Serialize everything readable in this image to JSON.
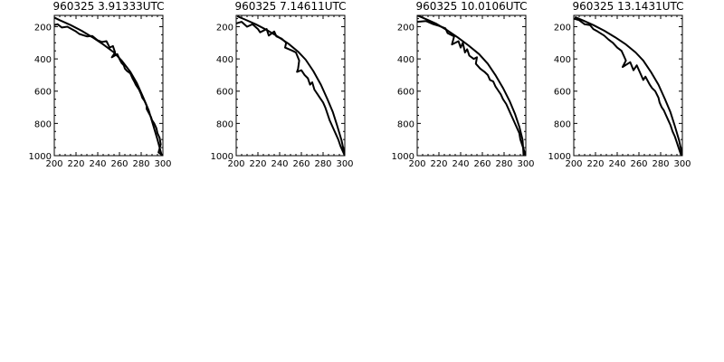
{
  "chart_data": [
    {
      "type": "line",
      "title": "960325   3.91333UTC",
      "xlim": [
        200,
        300
      ],
      "ylim": [
        1000,
        130
      ],
      "xticks": [
        "200",
        "220",
        "240",
        "260",
        "280",
        "300"
      ],
      "yticks": [
        "200",
        "400",
        "600",
        "800",
        "1000"
      ],
      "grid": false,
      "series": [
        {
          "x": [
            199,
            205,
            215,
            225,
            235,
            245,
            255,
            262,
            270,
            276,
            282,
            287,
            291,
            295,
            299
          ],
          "y": [
            140,
            160,
            190,
            225,
            265,
            310,
            360,
            410,
            480,
            550,
            640,
            720,
            810,
            900,
            1000
          ]
        },
        {
          "x": [
            200,
            203,
            207,
            212,
            220,
            223,
            230,
            235,
            240,
            244,
            248,
            251,
            254,
            256,
            253,
            258,
            260,
            262,
            264,
            265,
            267,
            270,
            272,
            274,
            275,
            278,
            280,
            281,
            283,
            285,
            285,
            287,
            289,
            290,
            292,
            294,
            295,
            297,
            298,
            296,
            300
          ],
          "y": [
            190,
            185,
            205,
            200,
            230,
            245,
            260,
            258,
            285,
            295,
            290,
            330,
            320,
            360,
            390,
            370,
            400,
            425,
            440,
            460,
            475,
            490,
            520,
            545,
            560,
            590,
            620,
            640,
            660,
            690,
            710,
            735,
            760,
            780,
            800,
            830,
            860,
            890,
            930,
            980,
            1000
          ]
        }
      ]
    },
    {
      "type": "line",
      "title": "960325   7.14611UTC",
      "xlim": [
        200,
        300
      ],
      "ylim": [
        1000,
        130
      ],
      "xticks": [
        "200",
        "220",
        "240",
        "260",
        "280",
        "300"
      ],
      "yticks": [
        "200",
        "400",
        "600",
        "800",
        "1000"
      ],
      "grid": false,
      "series": [
        {
          "x": [
            201,
            208,
            218,
            228,
            238,
            248,
            257,
            264,
            271,
            278,
            284,
            289,
            293,
            297,
            300
          ],
          "y": [
            135,
            155,
            185,
            220,
            260,
            305,
            355,
            405,
            475,
            560,
            650,
            730,
            815,
            905,
            1000
          ]
        },
        {
          "x": [
            200,
            205,
            210,
            215,
            220,
            222,
            228,
            230,
            235,
            237,
            242,
            246,
            245,
            252,
            255,
            258,
            257,
            256,
            260,
            263,
            266,
            268,
            270,
            272,
            275,
            277,
            280,
            282,
            283,
            285,
            286,
            288,
            290,
            292,
            294,
            296,
            298,
            300
          ],
          "y": [
            180,
            170,
            200,
            185,
            215,
            235,
            215,
            255,
            230,
            260,
            275,
            300,
            330,
            350,
            360,
            410,
            460,
            480,
            470,
            500,
            520,
            560,
            545,
            590,
            620,
            640,
            670,
            700,
            720,
            760,
            780,
            810,
            840,
            870,
            900,
            940,
            970,
            1000
          ]
        }
      ]
    },
    {
      "type": "line",
      "title": "960325   10.0106UTC",
      "xlim": [
        200,
        300
      ],
      "ylim": [
        1000,
        130
      ],
      "xticks": [
        "200",
        "220",
        "240",
        "260",
        "280",
        "300"
      ],
      "yticks": [
        "200",
        "400",
        "600",
        "800",
        "1000"
      ],
      "grid": false,
      "series": [
        {
          "x": [
            200,
            207,
            217,
            227,
            237,
            247,
            257,
            265,
            272,
            279,
            285,
            290,
            294,
            297,
            298
          ],
          "y": [
            130,
            150,
            180,
            220,
            265,
            315,
            370,
            430,
            500,
            580,
            660,
            740,
            820,
            900,
            1000
          ]
        },
        {
          "x": [
            200,
            208,
            215,
            220,
            226,
            228,
            234,
            232,
            238,
            240,
            242,
            244,
            246,
            248,
            252,
            255,
            254,
            258,
            262,
            265,
            267,
            270,
            272,
            274,
            277,
            279,
            282,
            284,
            286,
            288,
            290,
            292,
            294,
            295,
            298,
            300
          ],
          "y": [
            170,
            165,
            185,
            195,
            210,
            240,
            260,
            310,
            290,
            330,
            300,
            360,
            340,
            380,
            400,
            390,
            430,
            460,
            480,
            500,
            530,
            540,
            570,
            590,
            620,
            650,
            680,
            710,
            740,
            770,
            800,
            830,
            860,
            900,
            960,
            1000
          ]
        }
      ]
    },
    {
      "type": "line",
      "title": "960325   13.1431UTC",
      "xlim": [
        200,
        300
      ],
      "ylim": [
        1000,
        130
      ],
      "xticks": [
        "200",
        "220",
        "240",
        "260",
        "280",
        "300"
      ],
      "yticks": [
        "200",
        "400",
        "600",
        "800",
        "1000"
      ],
      "grid": false,
      "series": [
        {
          "x": [
            201,
            208,
            218,
            228,
            238,
            248,
            257,
            264,
            271,
            278,
            284,
            289,
            293,
            297,
            300
          ],
          "y": [
            140,
            160,
            190,
            225,
            265,
            310,
            360,
            410,
            480,
            560,
            650,
            730,
            815,
            905,
            1000
          ]
        },
        {
          "x": [
            200,
            205,
            210,
            215,
            218,
            222,
            228,
            232,
            236,
            240,
            244,
            246,
            248,
            245,
            252,
            255,
            258,
            262,
            264,
            266,
            270,
            272,
            275,
            278,
            279,
            281,
            283,
            285,
            287,
            289,
            291,
            293,
            295,
            297,
            299
          ],
          "y": [
            150,
            160,
            185,
            190,
            215,
            230,
            255,
            280,
            300,
            330,
            350,
            380,
            410,
            450,
            420,
            470,
            440,
            500,
            530,
            510,
            560,
            580,
            600,
            640,
            670,
            700,
            720,
            750,
            780,
            810,
            850,
            880,
            920,
            960,
            1000
          ]
        }
      ]
    }
  ]
}
